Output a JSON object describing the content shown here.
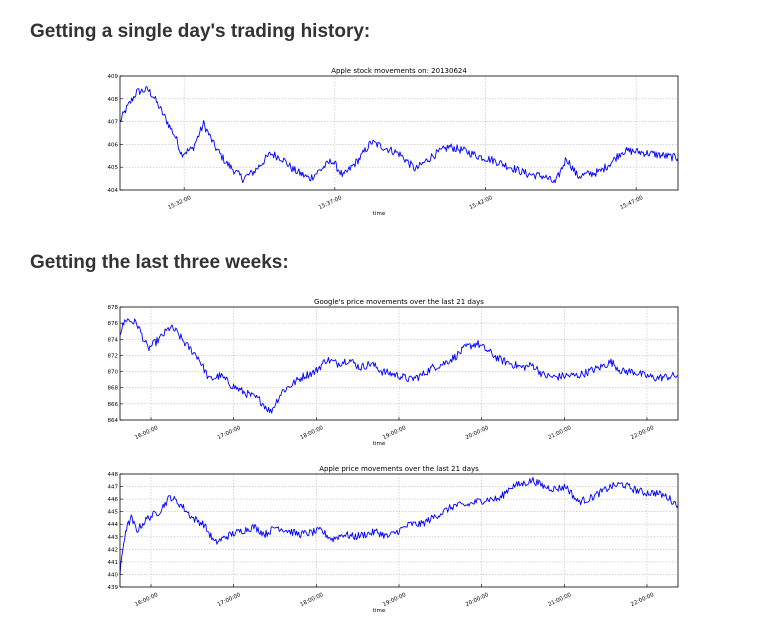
{
  "headings": {
    "single_day": "Getting a single day's trading history:",
    "three_weeks": "Getting the last three weeks:"
  },
  "colors": {
    "line": "#0000ff",
    "grid": "#bbbbbb",
    "frame": "#000000"
  },
  "chart_data": [
    {
      "type": "line",
      "title": "Apple stock movements on: 20130624",
      "xlabel": "time",
      "ylabel": "",
      "ylim": [
        404,
        409
      ],
      "yticks": [
        404,
        405,
        406,
        407,
        408,
        409
      ],
      "xticks": [
        "15:32:00",
        "15:37:00",
        "15:42:00",
        "15:47:00"
      ],
      "xtick_pos": [
        0.115,
        0.385,
        0.655,
        0.925
      ],
      "grid": true,
      "noise": 0.18,
      "x": [
        0,
        0.01,
        0.03,
        0.05,
        0.06,
        0.08,
        0.1,
        0.11,
        0.13,
        0.15,
        0.17,
        0.19,
        0.22,
        0.24,
        0.27,
        0.29,
        0.31,
        0.34,
        0.36,
        0.38,
        0.4,
        0.43,
        0.45,
        0.47,
        0.5,
        0.53,
        0.56,
        0.59,
        0.62,
        0.64,
        0.67,
        0.7,
        0.73,
        0.76,
        0.78,
        0.8,
        0.82,
        0.84,
        0.86,
        0.88,
        0.9,
        0.92,
        0.95,
        1.0
      ],
      "y": [
        407.0,
        407.5,
        408.3,
        408.4,
        408.1,
        407.2,
        406.3,
        405.6,
        405.8,
        406.9,
        405.9,
        405.2,
        404.5,
        404.8,
        405.6,
        405.4,
        404.9,
        404.5,
        404.9,
        405.3,
        404.6,
        405.4,
        406.1,
        405.9,
        405.6,
        404.9,
        405.5,
        405.9,
        405.7,
        405.5,
        405.3,
        405.0,
        404.7,
        404.6,
        404.3,
        405.4,
        404.6,
        404.7,
        404.8,
        405.2,
        405.7,
        405.7,
        405.6,
        405.4
      ],
      "frame": {
        "l": 120,
        "t": 76,
        "w": 558,
        "h": 114
      }
    },
    {
      "type": "line",
      "title": "Google's price movements over the last 21 days",
      "xlabel": "time",
      "ylabel": "",
      "ylim": [
        864,
        878
      ],
      "yticks": [
        864,
        866,
        868,
        870,
        872,
        874,
        876,
        878
      ],
      "xticks": [
        "16:00:00",
        "17:00:00",
        "18:00:00",
        "19:00:00",
        "20:00:00",
        "21:00:00",
        "22:00:00"
      ],
      "xtick_pos": [
        0.0556,
        0.2037,
        0.3519,
        0.5,
        0.6481,
        0.7963,
        0.9444
      ],
      "grid": true,
      "noise": 0.5,
      "x": [
        0,
        0.01,
        0.03,
        0.05,
        0.07,
        0.09,
        0.1,
        0.12,
        0.14,
        0.16,
        0.18,
        0.2,
        0.22,
        0.25,
        0.27,
        0.29,
        0.31,
        0.33,
        0.35,
        0.37,
        0.39,
        0.41,
        0.43,
        0.45,
        0.47,
        0.5,
        0.52,
        0.54,
        0.56,
        0.58,
        0.6,
        0.62,
        0.64,
        0.66,
        0.68,
        0.7,
        0.72,
        0.74,
        0.76,
        0.78,
        0.8,
        0.82,
        0.84,
        0.86,
        0.88,
        0.9,
        0.92,
        0.94,
        0.96,
        1.0
      ],
      "y": [
        874.8,
        876.5,
        876.0,
        872.8,
        874.0,
        875.5,
        875.0,
        873.2,
        871.8,
        869.0,
        869.5,
        868.3,
        867.5,
        866.5,
        865.0,
        867.5,
        868.5,
        869.5,
        870.0,
        871.5,
        871.0,
        871.5,
        870.5,
        871.0,
        870.0,
        869.5,
        869.0,
        869.5,
        870.5,
        871.0,
        871.8,
        873.0,
        873.5,
        872.5,
        871.5,
        871.0,
        870.5,
        870.8,
        869.5,
        869.3,
        869.5,
        869.5,
        870.0,
        870.5,
        871.2,
        870.0,
        870.0,
        869.5,
        869.2,
        869.5
      ],
      "frame": {
        "l": 120,
        "t": 307,
        "w": 558,
        "h": 113
      }
    },
    {
      "type": "line",
      "title": "Apple price movements over the last 21 days",
      "xlabel": "time",
      "ylabel": "",
      "ylim": [
        439,
        448
      ],
      "yticks": [
        439,
        440,
        441,
        442,
        443,
        444,
        445,
        446,
        447,
        448
      ],
      "xticks": [
        "16:00:00",
        "17:00:00",
        "18:00:00",
        "19:00:00",
        "20:00:00",
        "21:00:00",
        "22:00:00"
      ],
      "xtick_pos": [
        0.0556,
        0.2037,
        0.3519,
        0.5,
        0.6481,
        0.7963,
        0.9444
      ],
      "grid": true,
      "noise": 0.3,
      "x": [
        0,
        0.005,
        0.01,
        0.02,
        0.03,
        0.05,
        0.07,
        0.09,
        0.11,
        0.13,
        0.15,
        0.17,
        0.19,
        0.2,
        0.22,
        0.24,
        0.26,
        0.28,
        0.3,
        0.32,
        0.34,
        0.36,
        0.38,
        0.4,
        0.42,
        0.44,
        0.46,
        0.48,
        0.5,
        0.52,
        0.54,
        0.56,
        0.58,
        0.6,
        0.62,
        0.64,
        0.66,
        0.68,
        0.7,
        0.72,
        0.74,
        0.76,
        0.78,
        0.8,
        0.82,
        0.84,
        0.86,
        0.88,
        0.9,
        0.92,
        0.94,
        0.96,
        0.98,
        1.0
      ],
      "y": [
        440.0,
        442.0,
        443.5,
        444.5,
        443.5,
        444.5,
        445.0,
        446.2,
        445.5,
        444.5,
        444.0,
        442.5,
        443.0,
        443.2,
        443.5,
        443.8,
        443.2,
        443.8,
        443.5,
        443.2,
        443.3,
        443.5,
        442.8,
        443.2,
        443.0,
        443.2,
        443.4,
        443.0,
        443.5,
        444.0,
        444.0,
        444.5,
        445.0,
        445.5,
        445.5,
        445.8,
        446.0,
        446.0,
        447.0,
        447.2,
        447.5,
        447.0,
        446.8,
        447.0,
        445.8,
        446.0,
        446.5,
        447.0,
        447.2,
        446.8,
        446.5,
        446.5,
        446.2,
        445.5
      ],
      "frame": {
        "l": 120,
        "t": 474,
        "w": 558,
        "h": 113
      }
    }
  ]
}
